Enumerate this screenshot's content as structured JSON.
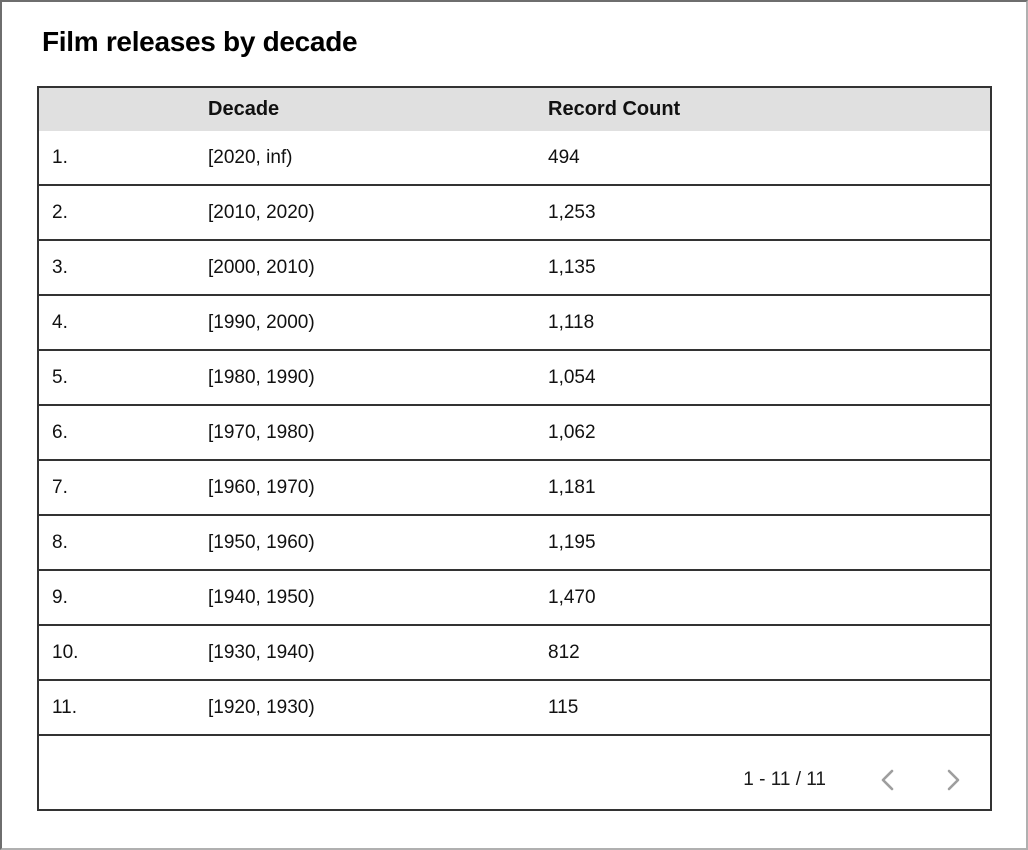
{
  "title": "Film releases by decade",
  "table": {
    "columns": [
      "",
      "Decade",
      "Record Count"
    ],
    "rows": [
      {
        "num": "1.",
        "decade": "[2020, inf)",
        "count": "494"
      },
      {
        "num": "2.",
        "decade": "[2010, 2020)",
        "count": "1,253"
      },
      {
        "num": "3.",
        "decade": "[2000, 2010)",
        "count": "1,135"
      },
      {
        "num": "4.",
        "decade": "[1990, 2000)",
        "count": "1,118"
      },
      {
        "num": "5.",
        "decade": "[1980, 1990)",
        "count": "1,054"
      },
      {
        "num": "6.",
        "decade": "[1970, 1980)",
        "count": "1,062"
      },
      {
        "num": "7.",
        "decade": "[1960, 1970)",
        "count": "1,181"
      },
      {
        "num": "8.",
        "decade": "[1950, 1960)",
        "count": "1,195"
      },
      {
        "num": "9.",
        "decade": "[1940, 1950)",
        "count": "1,470"
      },
      {
        "num": "10.",
        "decade": "[1930, 1940)",
        "count": "812"
      },
      {
        "num": "11.",
        "decade": "[1920, 1930)",
        "count": "115"
      }
    ]
  },
  "pagination": {
    "range": "1 - 11 / 11",
    "prev_icon": "chevron-left",
    "next_icon": "chevron-right"
  },
  "colors": {
    "header_bg": "#e0e0e0",
    "border": "#333333",
    "text": "#111111",
    "chevron": "#9e9e9e"
  },
  "chart_data": {
    "type": "table",
    "title": "Film releases by decade",
    "columns": [
      "Decade",
      "Record Count"
    ],
    "categories": [
      "[2020, inf)",
      "[2010, 2020)",
      "[2000, 2010)",
      "[1990, 2000)",
      "[1980, 1990)",
      "[1970, 1980)",
      "[1960, 1970)",
      "[1950, 1960)",
      "[1940, 1950)",
      "[1930, 1940)",
      "[1920, 1930)"
    ],
    "values": [
      494,
      1253,
      1135,
      1118,
      1054,
      1062,
      1181,
      1195,
      1470,
      812,
      115
    ],
    "pagination": "1 - 11 / 11"
  }
}
